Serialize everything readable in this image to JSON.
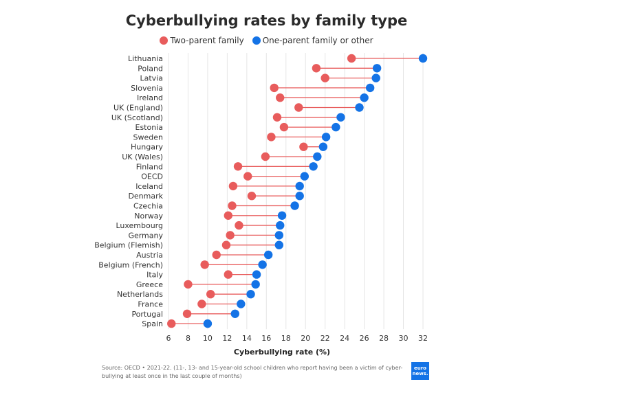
{
  "chart_data": {
    "type": "dumbbell",
    "title": "Cyberbullying rates by family type",
    "xlabel": "Cyberbullying rate (%)",
    "xlim": [
      6,
      32
    ],
    "xticks": [
      6,
      8,
      10,
      12,
      14,
      16,
      18,
      20,
      22,
      24,
      26,
      28,
      30,
      32
    ],
    "grid": "vertical",
    "legend_placement": "top-center",
    "categories": [
      "Lithuania",
      "Poland",
      "Latvia",
      "Slovenia",
      "Ireland",
      "UK (England)",
      "UK (Scotland)",
      "Estonia",
      "Sweden",
      "Hungary",
      "UK (Wales)",
      "Finland",
      "OECD",
      "Iceland",
      "Denmark",
      "Czechia",
      "Norway",
      "Luxembourg",
      "Germany",
      "Belgium (Flemish)",
      "Austria",
      "Belgium (French)",
      "Italy",
      "Greece",
      "Netherlands",
      "France",
      "Portugal",
      "Spain"
    ],
    "series": [
      {
        "name": "Two-parent family",
        "color": "#e85c5c",
        "values": [
          24.7,
          21.1,
          22.0,
          16.8,
          17.4,
          19.3,
          17.1,
          17.8,
          16.5,
          19.8,
          15.9,
          13.1,
          14.1,
          12.6,
          14.5,
          12.5,
          12.1,
          13.2,
          12.3,
          11.9,
          10.9,
          9.7,
          12.1,
          8.0,
          10.3,
          9.4,
          7.9,
          6.3
        ]
      },
      {
        "name": "One-parent family or other",
        "color": "#1473e6",
        "values": [
          32.0,
          27.3,
          27.2,
          26.6,
          26.0,
          25.5,
          23.6,
          23.1,
          22.1,
          21.8,
          21.2,
          20.8,
          19.9,
          19.4,
          19.4,
          18.9,
          17.6,
          17.4,
          17.3,
          17.3,
          16.2,
          15.6,
          15.0,
          14.9,
          14.4,
          13.4,
          12.8,
          10.0
        ]
      }
    ]
  },
  "source": {
    "text": "Source: OECD • 2021-22. (11-, 13- and 15-year-old school children who report having been a victim of cyber-bullying at least once in the last couple of months)"
  },
  "logo": {
    "line1": "euro",
    "line2": "news."
  }
}
